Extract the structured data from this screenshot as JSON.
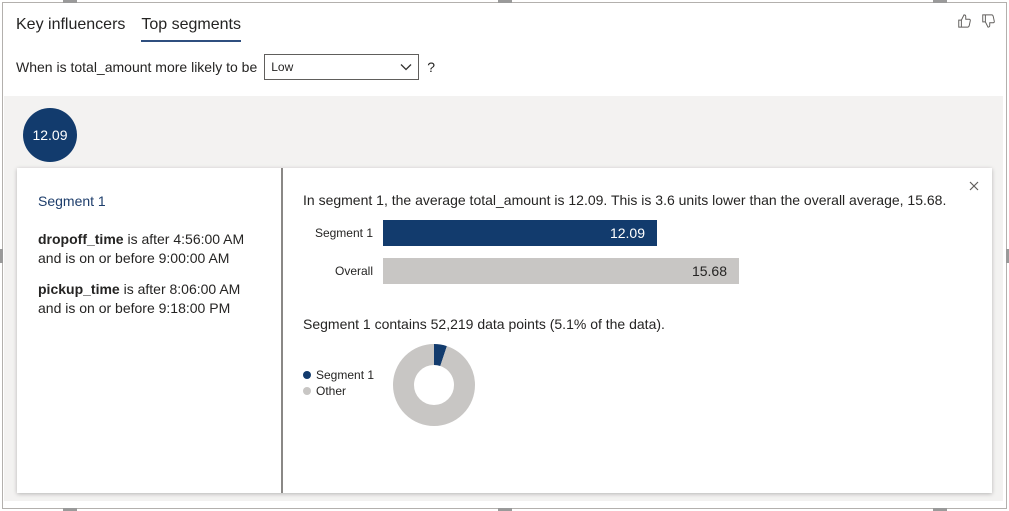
{
  "tabs": [
    {
      "label": "Key influencers",
      "active": false
    },
    {
      "label": "Top segments",
      "active": true
    }
  ],
  "feedback": {
    "thumbs_up_icon": "thumbs-up-icon",
    "thumbs_down_icon": "thumbs-down-icon"
  },
  "question": {
    "label": "When is total_amount more likely to be",
    "selected": "Low",
    "suffix": "?"
  },
  "bubble": {
    "value": "12.09"
  },
  "segment": {
    "title": "Segment 1",
    "conditions": [
      {
        "field": "dropoff_time",
        "line1": " is after 4:56:00 AM",
        "line2": "and is on or before 9:00:00 AM"
      },
      {
        "field": "pickup_time",
        "line1": " is after 8:06:00 AM",
        "line2": "and is on or before 9:18:00 PM"
      }
    ],
    "summary": "In segment 1, the average total_amount is 12.09. This is 3.6 units lower than the overall average, 15.68.",
    "contains": "Segment 1 contains 52,219 data points (5.1% of the data)."
  },
  "chart_data": [
    {
      "type": "bar",
      "categories": [
        "Segment 1",
        "Overall"
      ],
      "values": [
        12.09,
        15.68
      ],
      "value_labels": [
        "12.09",
        "15.68"
      ],
      "colors": [
        "#123b6d",
        "#c8c6c4"
      ]
    },
    {
      "type": "pie",
      "labels": [
        "Segment 1",
        "Other"
      ],
      "values": [
        5.1,
        94.9
      ],
      "colors": [
        "#123b6d",
        "#c8c6c4"
      ],
      "legend": "left"
    }
  ]
}
